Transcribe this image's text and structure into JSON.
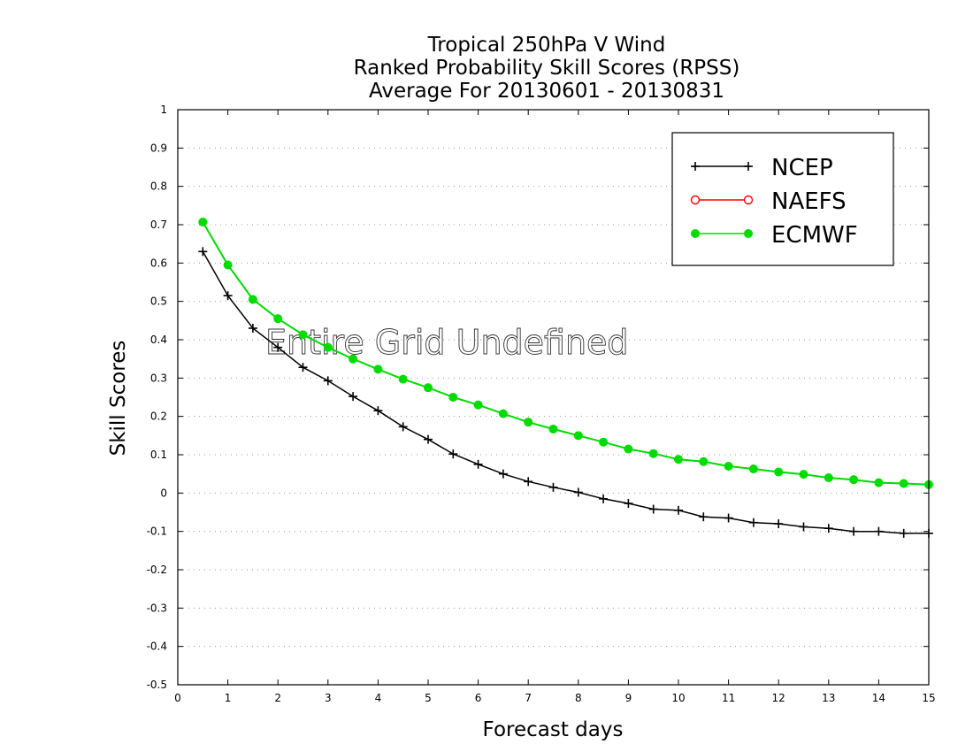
{
  "chart_data": {
    "type": "line",
    "title": [
      "Tropical 250hPa V Wind",
      "Ranked Probability Skill Scores (RPSS)",
      "Average For 20130601 - 20130831"
    ],
    "xlabel": "Forecast days",
    "ylabel": "Skill Scores",
    "xlim": [
      0,
      15
    ],
    "ylim": [
      -0.5,
      1
    ],
    "xticks": [
      "0",
      "1",
      "2",
      "3",
      "4",
      "5",
      "6",
      "7",
      "8",
      "9",
      "10",
      "11",
      "12",
      "13",
      "14",
      "15"
    ],
    "yticks": [
      "1",
      "0.9",
      "0.8",
      "0.7",
      "0.6",
      "0.5",
      "0.4",
      "0.3",
      "0.2",
      "0.1",
      "0",
      "-0.1",
      "-0.2",
      "-0.3",
      "-0.4",
      "-0.5"
    ],
    "grid": true,
    "legend_position": "top-right",
    "annotation": "Entire Grid Undefined",
    "series": [
      {
        "name": "NCEP",
        "color": "#000000",
        "marker": "plus",
        "x": [
          0.5,
          1,
          1.5,
          2,
          2.5,
          3,
          3.5,
          4,
          4.5,
          5,
          5.5,
          6,
          6.5,
          7,
          7.5,
          8,
          8.5,
          9,
          9.5,
          10,
          10.5,
          11,
          11.5,
          12,
          12.5,
          13,
          13.5,
          14,
          14.5,
          15
        ],
        "values": [
          0.63,
          0.515,
          0.43,
          0.38,
          0.328,
          0.293,
          0.252,
          0.215,
          0.173,
          0.14,
          0.102,
          0.075,
          0.05,
          0.03,
          0.015,
          0.002,
          -0.015,
          -0.027,
          -0.042,
          -0.045,
          -0.062,
          -0.065,
          -0.077,
          -0.08,
          -0.088,
          -0.092,
          -0.1,
          -0.1,
          -0.105,
          -0.105
        ]
      },
      {
        "name": "NAEFS",
        "color": "#ff0000",
        "marker": "open-circle",
        "x": [],
        "values": []
      },
      {
        "name": "ECMWF",
        "color": "#00dc00",
        "marker": "filled-circle",
        "x": [
          0.5,
          1,
          1.5,
          2,
          2.5,
          3,
          3.5,
          4,
          4.5,
          5,
          5.5,
          6,
          6.5,
          7,
          7.5,
          8,
          8.5,
          9,
          9.5,
          10,
          10.5,
          11,
          11.5,
          12,
          12.5,
          13,
          13.5,
          14,
          14.5,
          15
        ],
        "values": [
          0.707,
          0.595,
          0.505,
          0.455,
          0.413,
          0.38,
          0.35,
          0.323,
          0.297,
          0.275,
          0.25,
          0.23,
          0.207,
          0.185,
          0.167,
          0.15,
          0.133,
          0.115,
          0.103,
          0.088,
          0.082,
          0.07,
          0.063,
          0.055,
          0.049,
          0.04,
          0.035,
          0.027,
          0.025,
          0.022
        ]
      }
    ]
  }
}
